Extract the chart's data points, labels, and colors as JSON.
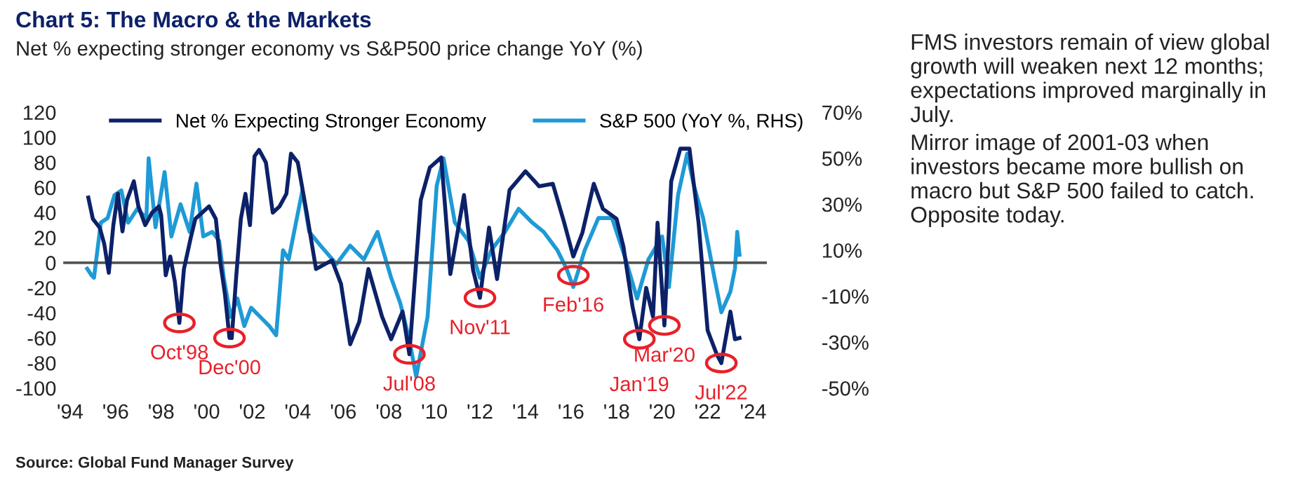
{
  "chart_data": {
    "type": "line",
    "title": "Chart 5: The Macro & the Markets",
    "subtitle": "Net % expecting stronger economy vs S&P500 price change YoY (%)",
    "xlim": [
      1993.7,
      2024.6
    ],
    "xticks": [
      {
        "value": 1994,
        "label": "'94"
      },
      {
        "value": 1996,
        "label": "'96"
      },
      {
        "value": 1998,
        "label": "'98"
      },
      {
        "value": 2000,
        "label": "'00"
      },
      {
        "value": 2002,
        "label": "'02"
      },
      {
        "value": 2004,
        "label": "'04"
      },
      {
        "value": 2006,
        "label": "'06"
      },
      {
        "value": 2008,
        "label": "'08"
      },
      {
        "value": 2010,
        "label": "'10"
      },
      {
        "value": 2012,
        "label": "'12"
      },
      {
        "value": 2014,
        "label": "'14"
      },
      {
        "value": 2016,
        "label": "'16"
      },
      {
        "value": 2018,
        "label": "'18"
      },
      {
        "value": 2020,
        "label": "'20"
      },
      {
        "value": 2022,
        "label": "'22"
      },
      {
        "value": 2024,
        "label": "'24"
      }
    ],
    "ylim": [
      -100,
      120
    ],
    "yticks": [
      -100,
      -80,
      -60,
      -40,
      -20,
      0,
      20,
      40,
      60,
      80,
      100,
      120
    ],
    "y2lim": [
      -50,
      70
    ],
    "y2ticks": [
      {
        "value": -50,
        "label": "-50%"
      },
      {
        "value": -30,
        "label": "-30%"
      },
      {
        "value": -10,
        "label": "-10%"
      },
      {
        "value": 10,
        "label": "10%"
      },
      {
        "value": 30,
        "label": "30%"
      },
      {
        "value": 50,
        "label": "50%"
      },
      {
        "value": 70,
        "label": "70%"
      }
    ],
    "grid": false,
    "legend": "top",
    "ref_lines": [
      {
        "axis": "y",
        "value": 0,
        "color": "#555555"
      }
    ],
    "series": [
      {
        "name": "Net % Expecting Stronger Economy",
        "color": "#0c2168",
        "x": [
          1994.8,
          1995.0,
          1995.3,
          1995.5,
          1995.7,
          1995.9,
          1996.1,
          1996.3,
          1996.5,
          1996.8,
          1997.0,
          1997.3,
          1997.6,
          1997.9,
          1998.0,
          1998.2,
          1998.4,
          1998.6,
          1998.8,
          1999.0,
          1999.3,
          1999.5,
          1999.8,
          2000.1,
          2000.4,
          2000.6,
          2000.8,
          2001.0,
          2001.1,
          2001.3,
          2001.5,
          2001.7,
          2001.9,
          2002.1,
          2002.3,
          2002.6,
          2002.9,
          2003.2,
          2003.5,
          2003.7,
          2004.0,
          2004.4,
          2004.8,
          2005.5,
          2005.9,
          2006.3,
          2006.7,
          2007.1,
          2007.7,
          2008.1,
          2008.6,
          2008.9,
          2009.4,
          2009.8,
          2010.3,
          2010.7,
          2011.3,
          2011.7,
          2012.0,
          2012.4,
          2012.75,
          2013.3,
          2014.0,
          2014.6,
          2015.2,
          2015.7,
          2016.1,
          2016.5,
          2017.0,
          2017.4,
          2018.0,
          2018.3,
          2018.7,
          2019.0,
          2019.3,
          2019.6,
          2019.8,
          2020.1,
          2020.4,
          2020.8,
          2021.2,
          2021.6,
          2022.0,
          2022.4,
          2022.6,
          2023.0,
          2023.2,
          2023.4
        ],
        "values": [
          52,
          35,
          28,
          15,
          -8,
          30,
          55,
          25,
          50,
          65,
          45,
          30,
          40,
          45,
          38,
          -10,
          5,
          -15,
          -48,
          -5,
          20,
          35,
          40,
          45,
          35,
          0,
          -25,
          -60,
          -60,
          -10,
          35,
          55,
          30,
          85,
          90,
          80,
          40,
          45,
          55,
          87,
          80,
          39,
          -5,
          2,
          -17,
          -65,
          -47,
          -5,
          -43,
          -61,
          -39,
          -73,
          50,
          76,
          84,
          -9,
          54,
          -6,
          -28,
          28,
          -13,
          58,
          73,
          61,
          63,
          32,
          5,
          24,
          63,
          43,
          35,
          13,
          -35,
          -61,
          -20,
          -43,
          32,
          -50,
          65,
          91,
          91,
          32,
          -54,
          -73,
          -80,
          -39,
          -61,
          -60
        ]
      },
      {
        "name": "S&P 500 (YoY %, RHS)",
        "color": "#1e9ad6",
        "axis": "y2",
        "x": [
          1994.75,
          1994.95,
          1995.05,
          1995.35,
          1995.65,
          1995.95,
          1996.25,
          1996.55,
          1996.95,
          1997.35,
          1997.45,
          1997.75,
          1998.15,
          1998.45,
          1998.85,
          1999.25,
          1999.55,
          1999.85,
          2000.25,
          2000.55,
          2000.75,
          2001.05,
          2001.35,
          2001.65,
          2001.95,
          2002.35,
          2002.75,
          2003.05,
          2003.35,
          2003.6,
          2004.2,
          2004.5,
          2005.0,
          2005.7,
          2006.3,
          2006.9,
          2007.5,
          2008.1,
          2008.5,
          2008.9,
          2009.2,
          2009.7,
          2010.1,
          2010.4,
          2010.9,
          2011.5,
          2012.0,
          2012.5,
          2013.1,
          2013.7,
          2014.3,
          2014.8,
          2015.4,
          2015.8,
          2016.1,
          2016.6,
          2017.2,
          2017.8,
          2018.4,
          2018.9,
          2019.4,
          2020.0,
          2020.3,
          2020.7,
          2021.1,
          2021.4,
          2021.8,
          2022.3,
          2022.6,
          2023.0,
          2023.2,
          2023.3,
          2023.4
        ],
        "values": [
          2,
          -1,
          -2,
          22,
          24,
          34,
          36,
          22,
          28,
          24,
          50,
          20,
          44,
          16,
          30,
          18,
          39,
          16,
          18,
          14,
          -2,
          -19,
          -11,
          -23,
          -15,
          -19,
          -23,
          -27,
          10,
          6,
          36,
          18,
          12,
          4,
          12,
          6,
          18,
          -2,
          -13,
          -29,
          -45,
          -19,
          38,
          50,
          22,
          14,
          -2,
          10,
          18,
          28,
          22,
          18,
          10,
          2,
          -6,
          10,
          24,
          24,
          6,
          -11,
          6,
          16,
          -6,
          34,
          52,
          38,
          24,
          -2,
          -17,
          -8,
          2,
          18,
          8
        ]
      }
    ],
    "annotations": [
      {
        "text": "Oct'98",
        "x": 1998.8,
        "y": -48
      },
      {
        "text": "Dec'00",
        "x": 2001.0,
        "y": -60
      },
      {
        "text": "Jul'08",
        "x": 2008.9,
        "y": -73
      },
      {
        "text": "Nov'11",
        "x": 2012.0,
        "y": -28
      },
      {
        "text": "Feb'16",
        "x": 2016.1,
        "y": -10
      },
      {
        "text": "Jan'19",
        "x": 2019.0,
        "y": -61
      },
      {
        "text": "Mar'20",
        "x": 2020.1,
        "y": -50
      },
      {
        "text": "Jul'22",
        "x": 2022.6,
        "y": -80
      },
      "FMS investors remain of view global growth will weaken next 12 months; expectations improved marginally in July.",
      "Mirror image of 2001-03 when investors became more bullish on macro but S&P 500 failed to catch. Opposite today.",
      "Source: Global Fund Manager Survey"
    ]
  }
}
